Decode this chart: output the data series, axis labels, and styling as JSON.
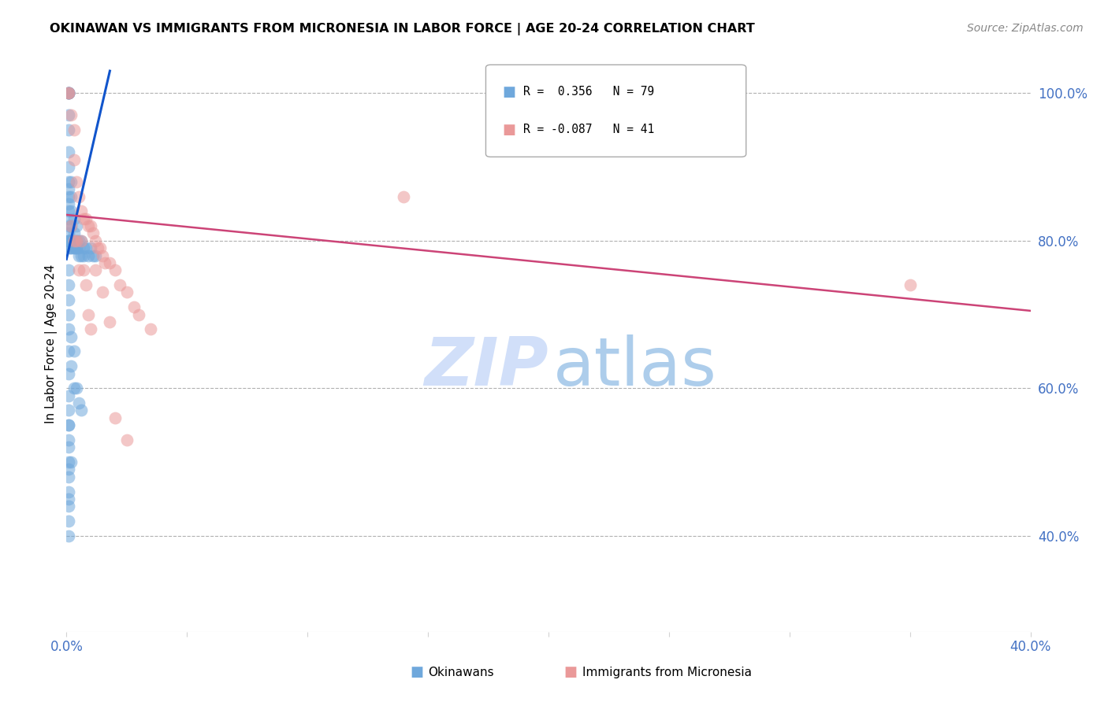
{
  "title": "OKINAWAN VS IMMIGRANTS FROM MICRONESIA IN LABOR FORCE | AGE 20-24 CORRELATION CHART",
  "source": "Source: ZipAtlas.com",
  "ylabel": "In Labor Force | Age 20-24",
  "xlim": [
    0.0,
    0.4
  ],
  "ylim": [
    0.27,
    1.05
  ],
  "xticks": [
    0.0,
    0.05,
    0.1,
    0.15,
    0.2,
    0.25,
    0.3,
    0.35,
    0.4
  ],
  "xtick_labels": [
    "0.0%",
    "",
    "",
    "",
    "",
    "",
    "",
    "",
    "40.0%"
  ],
  "ytick_labels_right": [
    "100.0%",
    "80.0%",
    "60.0%",
    "40.0%"
  ],
  "yticks_right": [
    1.0,
    0.8,
    0.6,
    0.4
  ],
  "legend_r1": "R =  0.356",
  "legend_n1": "N = 79",
  "legend_r2": "R = -0.087",
  "legend_n2": "N = 41",
  "blue_color": "#6fa8dc",
  "pink_color": "#ea9999",
  "blue_line_color": "#1155cc",
  "pink_line_color": "#cc4477",
  "text_color": "#4472c4",
  "background_color": "#ffffff",
  "grid_color": "#b0b0b0",
  "okinawan_x": [
    0.001,
    0.001,
    0.001,
    0.001,
    0.001,
    0.001,
    0.001,
    0.001,
    0.001,
    0.001,
    0.001,
    0.001,
    0.001,
    0.001,
    0.001,
    0.001,
    0.001,
    0.001,
    0.001,
    0.001,
    0.001,
    0.001,
    0.002,
    0.002,
    0.002,
    0.002,
    0.002,
    0.002,
    0.002,
    0.003,
    0.003,
    0.003,
    0.003,
    0.003,
    0.004,
    0.004,
    0.004,
    0.004,
    0.005,
    0.005,
    0.005,
    0.006,
    0.006,
    0.007,
    0.007,
    0.008,
    0.009,
    0.01,
    0.011,
    0.012,
    0.001,
    0.001,
    0.001,
    0.001,
    0.001,
    0.001,
    0.002,
    0.002,
    0.003,
    0.003,
    0.004,
    0.005,
    0.006,
    0.001,
    0.001,
    0.002,
    0.001,
    0.001,
    0.001,
    0.001,
    0.001,
    0.001,
    0.001,
    0.001,
    0.001,
    0.001,
    0.001,
    0.001,
    0.001
  ],
  "okinawan_y": [
    1.0,
    1.0,
    1.0,
    1.0,
    1.0,
    0.97,
    0.95,
    0.92,
    0.9,
    0.88,
    0.87,
    0.86,
    0.85,
    0.84,
    0.83,
    0.82,
    0.81,
    0.8,
    0.8,
    0.8,
    0.8,
    0.79,
    0.88,
    0.86,
    0.84,
    0.82,
    0.8,
    0.79,
    0.79,
    0.83,
    0.81,
    0.8,
    0.79,
    0.79,
    0.82,
    0.8,
    0.79,
    0.79,
    0.8,
    0.79,
    0.78,
    0.8,
    0.78,
    0.79,
    0.78,
    0.79,
    0.78,
    0.79,
    0.78,
    0.78,
    0.76,
    0.74,
    0.72,
    0.7,
    0.68,
    0.65,
    0.67,
    0.63,
    0.65,
    0.6,
    0.6,
    0.58,
    0.57,
    0.55,
    0.52,
    0.5,
    0.49,
    0.46,
    0.44,
    0.62,
    0.59,
    0.57,
    0.55,
    0.53,
    0.5,
    0.48,
    0.45,
    0.42,
    0.4
  ],
  "micronesia_x": [
    0.001,
    0.001,
    0.002,
    0.003,
    0.003,
    0.004,
    0.005,
    0.006,
    0.007,
    0.008,
    0.009,
    0.01,
    0.011,
    0.012,
    0.013,
    0.014,
    0.015,
    0.016,
    0.018,
    0.02,
    0.022,
    0.025,
    0.028,
    0.03,
    0.035,
    0.002,
    0.003,
    0.004,
    0.005,
    0.006,
    0.007,
    0.008,
    0.009,
    0.01,
    0.012,
    0.015,
    0.018,
    0.02,
    0.025,
    0.35,
    0.14
  ],
  "micronesia_y": [
    1.0,
    1.0,
    0.97,
    0.95,
    0.91,
    0.88,
    0.86,
    0.84,
    0.83,
    0.83,
    0.82,
    0.82,
    0.81,
    0.8,
    0.79,
    0.79,
    0.78,
    0.77,
    0.77,
    0.76,
    0.74,
    0.73,
    0.71,
    0.7,
    0.68,
    0.82,
    0.8,
    0.8,
    0.76,
    0.8,
    0.76,
    0.74,
    0.7,
    0.68,
    0.76,
    0.73,
    0.69,
    0.56,
    0.53,
    0.74,
    0.86
  ],
  "blue_trendline_x": [
    0.0,
    0.018
  ],
  "blue_trendline_y": [
    0.775,
    1.03
  ],
  "pink_trendline_x": [
    0.0,
    0.4
  ],
  "pink_trendline_y": [
    0.835,
    0.705
  ]
}
